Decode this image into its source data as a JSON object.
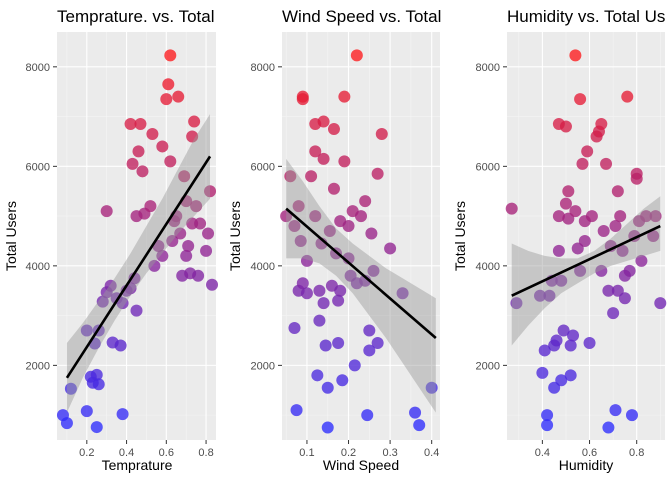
{
  "chart_data": [
    {
      "type": "scatter",
      "title": "Temprature. vs. Total",
      "xlabel": "Temprature",
      "ylabel": "Total Users",
      "xlim": [
        0.05,
        0.85
      ],
      "ylim": [
        500,
        8700
      ],
      "xticks": [
        0.2,
        0.4,
        0.6,
        0.8
      ],
      "xtick_labels": [
        "0.2",
        "0.4",
        "0.6",
        "0.8"
      ],
      "yticks": [
        2000,
        4000,
        6000,
        8000
      ],
      "ytick_labels": [
        "2000",
        "4000",
        "6000",
        "8000"
      ],
      "grid": true,
      "color_scale": {
        "low": "#2b2bff",
        "high": "#ff1a1a",
        "min": 700,
        "max": 8300
      },
      "trend": {
        "x": [
          0.1,
          0.82
        ],
        "y": [
          1750,
          6200
        ]
      },
      "band": {
        "x": [
          0.1,
          0.18,
          0.26,
          0.34,
          0.42,
          0.5,
          0.58,
          0.66,
          0.74,
          0.82
        ],
        "lower": [
          1050,
          1750,
          2350,
          2900,
          3400,
          3850,
          4250,
          4650,
          5000,
          5350
        ],
        "upper": [
          2450,
          2850,
          3300,
          3750,
          4250,
          4800,
          5350,
          5950,
          6550,
          7050
        ]
      },
      "points": [
        {
          "x": 0.08,
          "y": 1000
        },
        {
          "x": 0.1,
          "y": 840
        },
        {
          "x": 0.12,
          "y": 1530
        },
        {
          "x": 0.2,
          "y": 2700
        },
        {
          "x": 0.2,
          "y": 1080
        },
        {
          "x": 0.22,
          "y": 1770
        },
        {
          "x": 0.23,
          "y": 1650
        },
        {
          "x": 0.24,
          "y": 2440
        },
        {
          "x": 0.25,
          "y": 760
        },
        {
          "x": 0.25,
          "y": 1810
        },
        {
          "x": 0.26,
          "y": 1620
        },
        {
          "x": 0.26,
          "y": 2700
        },
        {
          "x": 0.28,
          "y": 3280
        },
        {
          "x": 0.3,
          "y": 3470
        },
        {
          "x": 0.32,
          "y": 3600
        },
        {
          "x": 0.3,
          "y": 5100
        },
        {
          "x": 0.33,
          "y": 2460
        },
        {
          "x": 0.35,
          "y": 3350
        },
        {
          "x": 0.37,
          "y": 2400
        },
        {
          "x": 0.38,
          "y": 3250
        },
        {
          "x": 0.38,
          "y": 1020
        },
        {
          "x": 0.4,
          "y": 3500
        },
        {
          "x": 0.42,
          "y": 3550
        },
        {
          "x": 0.42,
          "y": 6850
        },
        {
          "x": 0.43,
          "y": 6050
        },
        {
          "x": 0.44,
          "y": 3750
        },
        {
          "x": 0.45,
          "y": 3100
        },
        {
          "x": 0.45,
          "y": 5000
        },
        {
          "x": 0.46,
          "y": 6300
        },
        {
          "x": 0.47,
          "y": 6850
        },
        {
          "x": 0.48,
          "y": 5900
        },
        {
          "x": 0.49,
          "y": 5050
        },
        {
          "x": 0.52,
          "y": 5200
        },
        {
          "x": 0.53,
          "y": 6650
        },
        {
          "x": 0.54,
          "y": 4000
        },
        {
          "x": 0.56,
          "y": 4400
        },
        {
          "x": 0.58,
          "y": 6400
        },
        {
          "x": 0.58,
          "y": 4200
        },
        {
          "x": 0.6,
          "y": 7350
        },
        {
          "x": 0.62,
          "y": 8230
        },
        {
          "x": 0.61,
          "y": 7650
        },
        {
          "x": 0.62,
          "y": 6100
        },
        {
          "x": 0.63,
          "y": 4500
        },
        {
          "x": 0.64,
          "y": 4900
        },
        {
          "x": 0.65,
          "y": 5000
        },
        {
          "x": 0.66,
          "y": 7400
        },
        {
          "x": 0.67,
          "y": 4650
        },
        {
          "x": 0.68,
          "y": 3800
        },
        {
          "x": 0.69,
          "y": 5800
        },
        {
          "x": 0.7,
          "y": 5300
        },
        {
          "x": 0.7,
          "y": 4200
        },
        {
          "x": 0.71,
          "y": 4400
        },
        {
          "x": 0.72,
          "y": 3850
        },
        {
          "x": 0.73,
          "y": 6600
        },
        {
          "x": 0.73,
          "y": 4850
        },
        {
          "x": 0.74,
          "y": 6900
        },
        {
          "x": 0.75,
          "y": 5200
        },
        {
          "x": 0.76,
          "y": 3800
        },
        {
          "x": 0.77,
          "y": 4850
        },
        {
          "x": 0.8,
          "y": 4300
        },
        {
          "x": 0.81,
          "y": 4650
        },
        {
          "x": 0.82,
          "y": 5500
        },
        {
          "x": 0.83,
          "y": 3620
        }
      ]
    },
    {
      "type": "scatter",
      "title": "Wind Speed vs. Total",
      "xlabel": "Wind Speed",
      "ylabel": "Total Users",
      "xlim": [
        0.04,
        0.42
      ],
      "ylim": [
        500,
        8700
      ],
      "xticks": [
        0.1,
        0.2,
        0.3,
        0.4
      ],
      "xtick_labels": [
        "0.1",
        "0.2",
        "0.3",
        "0.4"
      ],
      "yticks": [
        2000,
        4000,
        6000,
        8000
      ],
      "ytick_labels": [
        "2000",
        "4000",
        "6000",
        "8000"
      ],
      "grid": true,
      "color_scale": {
        "low": "#2b2bff",
        "high": "#ff1a1a",
        "min": 700,
        "max": 8300
      },
      "trend": {
        "x": [
          0.05,
          0.41
        ],
        "y": [
          5150,
          2550
        ]
      },
      "band": {
        "x": [
          0.05,
          0.09,
          0.13,
          0.17,
          0.21,
          0.25,
          0.29,
          0.33,
          0.37,
          0.41
        ],
        "lower": [
          4150,
          4150,
          4050,
          3800,
          3450,
          3000,
          2550,
          2050,
          1550,
          1050
        ],
        "upper": [
          6150,
          5700,
          5200,
          4750,
          4450,
          4200,
          3950,
          3750,
          3550,
          3350
        ]
      },
      "points": [
        {
          "x": 0.05,
          "y": 5000
        },
        {
          "x": 0.06,
          "y": 5800
        },
        {
          "x": 0.07,
          "y": 2750
        },
        {
          "x": 0.07,
          "y": 4800
        },
        {
          "x": 0.075,
          "y": 1100
        },
        {
          "x": 0.08,
          "y": 5200
        },
        {
          "x": 0.08,
          "y": 3500
        },
        {
          "x": 0.09,
          "y": 7350
        },
        {
          "x": 0.09,
          "y": 7400
        },
        {
          "x": 0.085,
          "y": 4500
        },
        {
          "x": 0.09,
          "y": 3650
        },
        {
          "x": 0.1,
          "y": 4100
        },
        {
          "x": 0.1,
          "y": 3450
        },
        {
          "x": 0.11,
          "y": 5800
        },
        {
          "x": 0.12,
          "y": 6850
        },
        {
          "x": 0.12,
          "y": 6300
        },
        {
          "x": 0.12,
          "y": 5000
        },
        {
          "x": 0.125,
          "y": 1800
        },
        {
          "x": 0.13,
          "y": 3500
        },
        {
          "x": 0.13,
          "y": 2900
        },
        {
          "x": 0.135,
          "y": 4450
        },
        {
          "x": 0.14,
          "y": 6900
        },
        {
          "x": 0.14,
          "y": 6150
        },
        {
          "x": 0.14,
          "y": 3250
        },
        {
          "x": 0.145,
          "y": 2400
        },
        {
          "x": 0.15,
          "y": 1550
        },
        {
          "x": 0.15,
          "y": 750
        },
        {
          "x": 0.155,
          "y": 4700
        },
        {
          "x": 0.16,
          "y": 3600
        },
        {
          "x": 0.165,
          "y": 6750
        },
        {
          "x": 0.165,
          "y": 5550
        },
        {
          "x": 0.17,
          "y": 4250
        },
        {
          "x": 0.175,
          "y": 3300
        },
        {
          "x": 0.175,
          "y": 2450
        },
        {
          "x": 0.18,
          "y": 4900
        },
        {
          "x": 0.18,
          "y": 3500
        },
        {
          "x": 0.185,
          "y": 1700
        },
        {
          "x": 0.19,
          "y": 7400
        },
        {
          "x": 0.19,
          "y": 6100
        },
        {
          "x": 0.2,
          "y": 4800
        },
        {
          "x": 0.2,
          "y": 4150
        },
        {
          "x": 0.205,
          "y": 3800
        },
        {
          "x": 0.21,
          "y": 5100
        },
        {
          "x": 0.215,
          "y": 2000
        },
        {
          "x": 0.22,
          "y": 8230
        },
        {
          "x": 0.22,
          "y": 3650
        },
        {
          "x": 0.23,
          "y": 5000
        },
        {
          "x": 0.24,
          "y": 5300
        },
        {
          "x": 0.24,
          "y": 3700
        },
        {
          "x": 0.245,
          "y": 1000
        },
        {
          "x": 0.25,
          "y": 2700
        },
        {
          "x": 0.25,
          "y": 2300
        },
        {
          "x": 0.255,
          "y": 4650
        },
        {
          "x": 0.26,
          "y": 3900
        },
        {
          "x": 0.27,
          "y": 5850
        },
        {
          "x": 0.27,
          "y": 2450
        },
        {
          "x": 0.28,
          "y": 6650
        },
        {
          "x": 0.3,
          "y": 4350
        },
        {
          "x": 0.33,
          "y": 3450
        },
        {
          "x": 0.36,
          "y": 1050
        },
        {
          "x": 0.37,
          "y": 800
        },
        {
          "x": 0.4,
          "y": 1550
        }
      ]
    },
    {
      "type": "scatter",
      "title": "Humidity vs. Total Us",
      "xlabel": "Humidity",
      "ylabel": "Total Users",
      "xlim": [
        0.25,
        0.92
      ],
      "ylim": [
        500,
        8700
      ],
      "xticks": [
        0.4,
        0.6,
        0.8
      ],
      "xtick_labels": [
        "0.4",
        "0.6",
        "0.8"
      ],
      "yticks": [
        2000,
        4000,
        6000,
        8000
      ],
      "ytick_labels": [
        "2000",
        "4000",
        "6000",
        "8000"
      ],
      "grid": true,
      "color_scale": {
        "low": "#2b2bff",
        "high": "#ff1a1a",
        "min": 700,
        "max": 8300
      },
      "trend": {
        "x": [
          0.27,
          0.9
        ],
        "y": [
          3400,
          4800
        ]
      },
      "band": {
        "x": [
          0.27,
          0.34,
          0.41,
          0.48,
          0.55,
          0.62,
          0.69,
          0.76,
          0.83,
          0.9
        ],
        "lower": [
          2400,
          2800,
          3150,
          3450,
          3650,
          3850,
          4000,
          4100,
          4200,
          4300
        ],
        "upper": [
          4450,
          4300,
          4200,
          4150,
          4150,
          4300,
          4550,
          4850,
          5150,
          5400
        ]
      },
      "points": [
        {
          "x": 0.27,
          "y": 5150
        },
        {
          "x": 0.29,
          "y": 3250
        },
        {
          "x": 0.39,
          "y": 3400
        },
        {
          "x": 0.4,
          "y": 1850
        },
        {
          "x": 0.41,
          "y": 2300
        },
        {
          "x": 0.42,
          "y": 800
        },
        {
          "x": 0.42,
          "y": 1000
        },
        {
          "x": 0.43,
          "y": 3400
        },
        {
          "x": 0.44,
          "y": 3700
        },
        {
          "x": 0.45,
          "y": 1550
        },
        {
          "x": 0.45,
          "y": 2400
        },
        {
          "x": 0.46,
          "y": 2500
        },
        {
          "x": 0.47,
          "y": 6850
        },
        {
          "x": 0.47,
          "y": 5000
        },
        {
          "x": 0.47,
          "y": 4300
        },
        {
          "x": 0.48,
          "y": 3700
        },
        {
          "x": 0.48,
          "y": 1700
        },
        {
          "x": 0.49,
          "y": 2700
        },
        {
          "x": 0.5,
          "y": 6800
        },
        {
          "x": 0.5,
          "y": 5250
        },
        {
          "x": 0.51,
          "y": 5500
        },
        {
          "x": 0.51,
          "y": 4950
        },
        {
          "x": 0.52,
          "y": 2400
        },
        {
          "x": 0.52,
          "y": 1800
        },
        {
          "x": 0.53,
          "y": 2600
        },
        {
          "x": 0.54,
          "y": 8230
        },
        {
          "x": 0.54,
          "y": 5100
        },
        {
          "x": 0.55,
          "y": 4350
        },
        {
          "x": 0.56,
          "y": 7350
        },
        {
          "x": 0.56,
          "y": 3900
        },
        {
          "x": 0.57,
          "y": 6050
        },
        {
          "x": 0.58,
          "y": 4900
        },
        {
          "x": 0.58,
          "y": 4500
        },
        {
          "x": 0.59,
          "y": 6300
        },
        {
          "x": 0.6,
          "y": 2450
        },
        {
          "x": 0.61,
          "y": 5000
        },
        {
          "x": 0.63,
          "y": 6600
        },
        {
          "x": 0.64,
          "y": 6700
        },
        {
          "x": 0.65,
          "y": 6850
        },
        {
          "x": 0.65,
          "y": 3900
        },
        {
          "x": 0.66,
          "y": 4700
        },
        {
          "x": 0.67,
          "y": 6050
        },
        {
          "x": 0.68,
          "y": 3500
        },
        {
          "x": 0.68,
          "y": 750
        },
        {
          "x": 0.69,
          "y": 4400
        },
        {
          "x": 0.7,
          "y": 3050
        },
        {
          "x": 0.71,
          "y": 4800
        },
        {
          "x": 0.71,
          "y": 1100
        },
        {
          "x": 0.72,
          "y": 5500
        },
        {
          "x": 0.72,
          "y": 3500
        },
        {
          "x": 0.73,
          "y": 5000
        },
        {
          "x": 0.74,
          "y": 4300
        },
        {
          "x": 0.75,
          "y": 3800
        },
        {
          "x": 0.75,
          "y": 3350
        },
        {
          "x": 0.76,
          "y": 7400
        },
        {
          "x": 0.77,
          "y": 3900
        },
        {
          "x": 0.78,
          "y": 1000
        },
        {
          "x": 0.79,
          "y": 4600
        },
        {
          "x": 0.8,
          "y": 5850
        },
        {
          "x": 0.8,
          "y": 5750
        },
        {
          "x": 0.81,
          "y": 4900
        },
        {
          "x": 0.82,
          "y": 4100
        },
        {
          "x": 0.84,
          "y": 5000
        },
        {
          "x": 0.87,
          "y": 4600
        },
        {
          "x": 0.88,
          "y": 5000
        },
        {
          "x": 0.9,
          "y": 3250
        }
      ]
    }
  ]
}
